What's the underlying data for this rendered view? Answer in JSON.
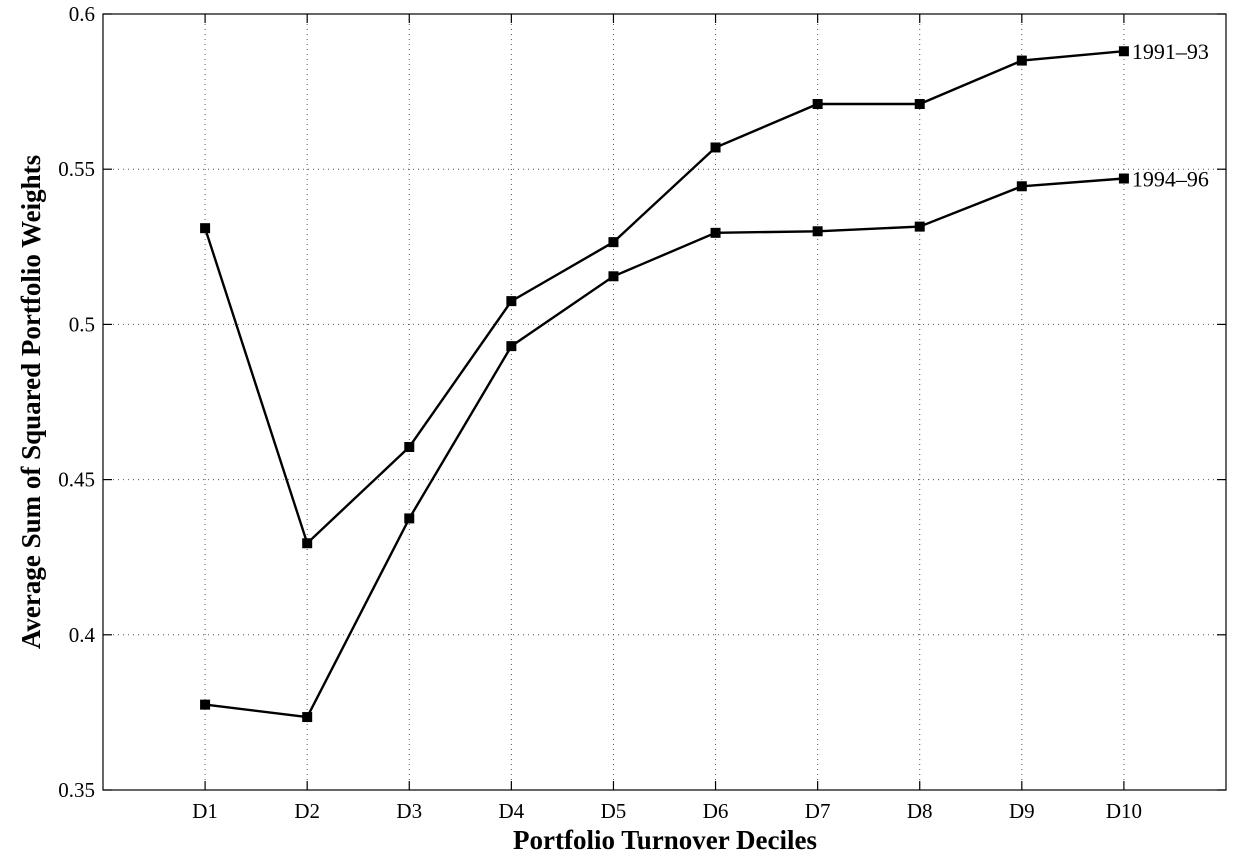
{
  "chart_data": {
    "type": "line",
    "title": "",
    "xlabel": "Portfolio Turnover Deciles",
    "ylabel": "Average Sum of Squared Portfolio Weights",
    "categories": [
      "D1",
      "D2",
      "D3",
      "D4",
      "D5",
      "D6",
      "D7",
      "D8",
      "D9",
      "D10"
    ],
    "x_range": [
      0,
      11
    ],
    "ylim": [
      0.35,
      0.6
    ],
    "yticks": [
      0.35,
      0.4,
      0.45,
      0.5,
      0.55,
      0.6
    ],
    "ytick_labels": [
      "0.35",
      "0.4",
      "0.45",
      "0.5",
      "0.55",
      "0.6"
    ],
    "grid": true,
    "marker": "square",
    "series": [
      {
        "name": "1991–93",
        "values": [
          0.531,
          0.4295,
          0.4605,
          0.5075,
          0.5265,
          0.557,
          0.571,
          0.571,
          0.585,
          0.588
        ]
      },
      {
        "name": "1994–96",
        "values": [
          0.3775,
          0.3735,
          0.4375,
          0.493,
          0.5155,
          0.5295,
          0.53,
          0.5315,
          0.5445,
          0.547
        ]
      }
    ]
  }
}
